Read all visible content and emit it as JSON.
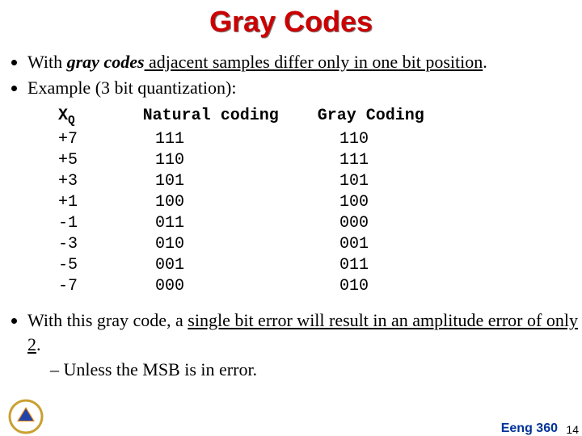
{
  "title": "Gray Codes",
  "bullets_top": [
    {
      "prefix": "With ",
      "em": "gray codes",
      "rest_u": " adjacent samples differ only in one bit position",
      "tail": "."
    },
    {
      "prefix": "Example (3 bit quantization):",
      "em": "",
      "rest_u": "",
      "tail": ""
    }
  ],
  "table": {
    "headers": {
      "x": "X",
      "xsub": "Q",
      "nat": "Natural coding",
      "gray": "Gray Coding"
    },
    "rows": [
      {
        "x": "+7",
        "nat": "111",
        "gray": "110"
      },
      {
        "x": "+5",
        "nat": "110",
        "gray": "111"
      },
      {
        "x": "+3",
        "nat": "101",
        "gray": "101"
      },
      {
        "x": "+1",
        "nat": "100",
        "gray": "100"
      },
      {
        "x": "-1",
        "nat": "011",
        "gray": "000"
      },
      {
        "x": "-3",
        "nat": "010",
        "gray": "001"
      },
      {
        "x": "-5",
        "nat": "001",
        "gray": "011"
      },
      {
        "x": "-7",
        "nat": "000",
        "gray": "010"
      }
    ],
    "col_pad": {
      "x": 9,
      "nat": 18
    }
  },
  "bullets_bottom": {
    "line1_pre": "With this gray code, a ",
    "line1_u": "single bit error will result in an amplitude error of only 2",
    "line1_post": ".",
    "sub1": "Unless the MSB is in error."
  },
  "footer": {
    "course": "Eeng 360",
    "page": "14"
  },
  "logo": {
    "outer_ring": "#f0c040",
    "inner": "#204090"
  }
}
